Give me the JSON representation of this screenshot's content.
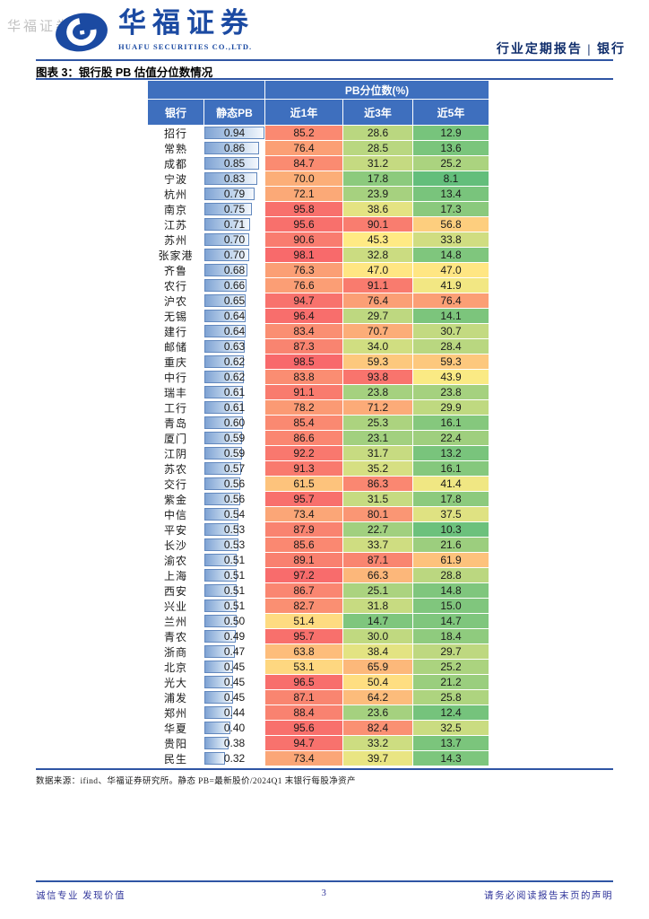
{
  "watermark": "华福证券",
  "header": {
    "logo_icon": "huafu-swirl-logo-icon",
    "logo_cn": "华福证券",
    "logo_en": "HUAFU SECURITIES CO.,LTD.",
    "meta": "行业定期报告 | 银行"
  },
  "figure": {
    "title": "图表 3：银行股 PB 估值分位数情况",
    "source_note": "数据来源：ifind、华福证券研究所。静态 PB=最新股价/2024Q1 末银行每股净资产"
  },
  "table": {
    "group_header": "PB分位数(%)",
    "columns": [
      "银行",
      "静态PB",
      "近1年",
      "近3年",
      "近5年"
    ],
    "header_bg": "#3E6FBE",
    "pb_bar_max": 0.94,
    "bar_border_color": "#6288BE",
    "color_scale": {
      "min_value": 8.1,
      "mid_value": 45,
      "max_value": 98.5,
      "min_color": "#63BE7B",
      "mid_color": "#FFEB84",
      "max_color": "#F8696B"
    },
    "rows": [
      {
        "bank": "招行",
        "pb": "0.94",
        "y1": "85.2",
        "y3": "28.6",
        "y5": "12.9"
      },
      {
        "bank": "常熟",
        "pb": "0.86",
        "y1": "76.4",
        "y3": "28.5",
        "y5": "13.6"
      },
      {
        "bank": "成都",
        "pb": "0.85",
        "y1": "84.7",
        "y3": "31.2",
        "y5": "25.2"
      },
      {
        "bank": "宁波",
        "pb": "0.83",
        "y1": "70.0",
        "y3": "17.8",
        "y5": "8.1"
      },
      {
        "bank": "杭州",
        "pb": "0.79",
        "y1": "72.1",
        "y3": "23.9",
        "y5": "13.4"
      },
      {
        "bank": "南京",
        "pb": "0.75",
        "y1": "95.8",
        "y3": "38.6",
        "y5": "17.3"
      },
      {
        "bank": "江苏",
        "pb": "0.71",
        "y1": "95.6",
        "y3": "90.1",
        "y5": "56.8"
      },
      {
        "bank": "苏州",
        "pb": "0.70",
        "y1": "90.6",
        "y3": "45.3",
        "y5": "33.8"
      },
      {
        "bank": "张家港",
        "pb": "0.70",
        "y1": "98.1",
        "y3": "32.8",
        "y5": "14.8"
      },
      {
        "bank": "齐鲁",
        "pb": "0.68",
        "y1": "76.3",
        "y3": "47.0",
        "y5": "47.0"
      },
      {
        "bank": "农行",
        "pb": "0.66",
        "y1": "76.6",
        "y3": "91.1",
        "y5": "41.9"
      },
      {
        "bank": "沪农",
        "pb": "0.65",
        "y1": "94.7",
        "y3": "76.4",
        "y5": "76.4"
      },
      {
        "bank": "无锡",
        "pb": "0.64",
        "y1": "96.4",
        "y3": "29.7",
        "y5": "14.1"
      },
      {
        "bank": "建行",
        "pb": "0.64",
        "y1": "83.4",
        "y3": "70.7",
        "y5": "30.7"
      },
      {
        "bank": "邮储",
        "pb": "0.63",
        "y1": "87.3",
        "y3": "34.0",
        "y5": "28.4"
      },
      {
        "bank": "重庆",
        "pb": "0.62",
        "y1": "98.5",
        "y3": "59.3",
        "y5": "59.3"
      },
      {
        "bank": "中行",
        "pb": "0.62",
        "y1": "83.8",
        "y3": "93.8",
        "y5": "43.9"
      },
      {
        "bank": "瑞丰",
        "pb": "0.61",
        "y1": "91.1",
        "y3": "23.8",
        "y5": "23.8"
      },
      {
        "bank": "工行",
        "pb": "0.61",
        "y1": "78.2",
        "y3": "71.2",
        "y5": "29.9"
      },
      {
        "bank": "青岛",
        "pb": "0.60",
        "y1": "85.4",
        "y3": "25.3",
        "y5": "16.1"
      },
      {
        "bank": "厦门",
        "pb": "0.59",
        "y1": "86.6",
        "y3": "23.1",
        "y5": "22.4"
      },
      {
        "bank": "江阴",
        "pb": "0.59",
        "y1": "92.2",
        "y3": "31.7",
        "y5": "13.2"
      },
      {
        "bank": "苏农",
        "pb": "0.57",
        "y1": "91.3",
        "y3": "35.2",
        "y5": "16.1"
      },
      {
        "bank": "交行",
        "pb": "0.56",
        "y1": "61.5",
        "y3": "86.3",
        "y5": "41.4"
      },
      {
        "bank": "紫金",
        "pb": "0.56",
        "y1": "95.7",
        "y3": "31.5",
        "y5": "17.8"
      },
      {
        "bank": "中信",
        "pb": "0.54",
        "y1": "73.4",
        "y3": "80.1",
        "y5": "37.5"
      },
      {
        "bank": "平安",
        "pb": "0.53",
        "y1": "87.9",
        "y3": "22.7",
        "y5": "10.3"
      },
      {
        "bank": "长沙",
        "pb": "0.53",
        "y1": "85.6",
        "y3": "33.7",
        "y5": "21.6"
      },
      {
        "bank": "渝农",
        "pb": "0.51",
        "y1": "89.1",
        "y3": "87.1",
        "y5": "61.9"
      },
      {
        "bank": "上海",
        "pb": "0.51",
        "y1": "97.2",
        "y3": "66.3",
        "y5": "28.8"
      },
      {
        "bank": "西安",
        "pb": "0.51",
        "y1": "86.7",
        "y3": "25.1",
        "y5": "14.8"
      },
      {
        "bank": "兴业",
        "pb": "0.51",
        "y1": "82.7",
        "y3": "31.8",
        "y5": "15.0"
      },
      {
        "bank": "兰州",
        "pb": "0.50",
        "y1": "51.4",
        "y3": "14.7",
        "y5": "14.7"
      },
      {
        "bank": "青农",
        "pb": "0.49",
        "y1": "95.7",
        "y3": "30.0",
        "y5": "18.4"
      },
      {
        "bank": "浙商",
        "pb": "0.47",
        "y1": "63.8",
        "y3": "38.4",
        "y5": "29.7"
      },
      {
        "bank": "北京",
        "pb": "0.45",
        "y1": "53.1",
        "y3": "65.9",
        "y5": "25.2"
      },
      {
        "bank": "光大",
        "pb": "0.45",
        "y1": "96.5",
        "y3": "50.4",
        "y5": "21.2"
      },
      {
        "bank": "浦发",
        "pb": "0.45",
        "y1": "87.1",
        "y3": "64.2",
        "y5": "25.8"
      },
      {
        "bank": "郑州",
        "pb": "0.44",
        "y1": "88.4",
        "y3": "23.6",
        "y5": "12.4"
      },
      {
        "bank": "华夏",
        "pb": "0.40",
        "y1": "95.6",
        "y3": "82.4",
        "y5": "32.5"
      },
      {
        "bank": "贵阳",
        "pb": "0.38",
        "y1": "94.7",
        "y3": "33.2",
        "y5": "13.7"
      },
      {
        "bank": "民生",
        "pb": "0.32",
        "y1": "73.4",
        "y3": "39.7",
        "y5": "14.3"
      }
    ]
  },
  "footer": {
    "left": "诚信专业  发现价值",
    "page": "3",
    "right": "请务必阅读报告末页的声明"
  }
}
